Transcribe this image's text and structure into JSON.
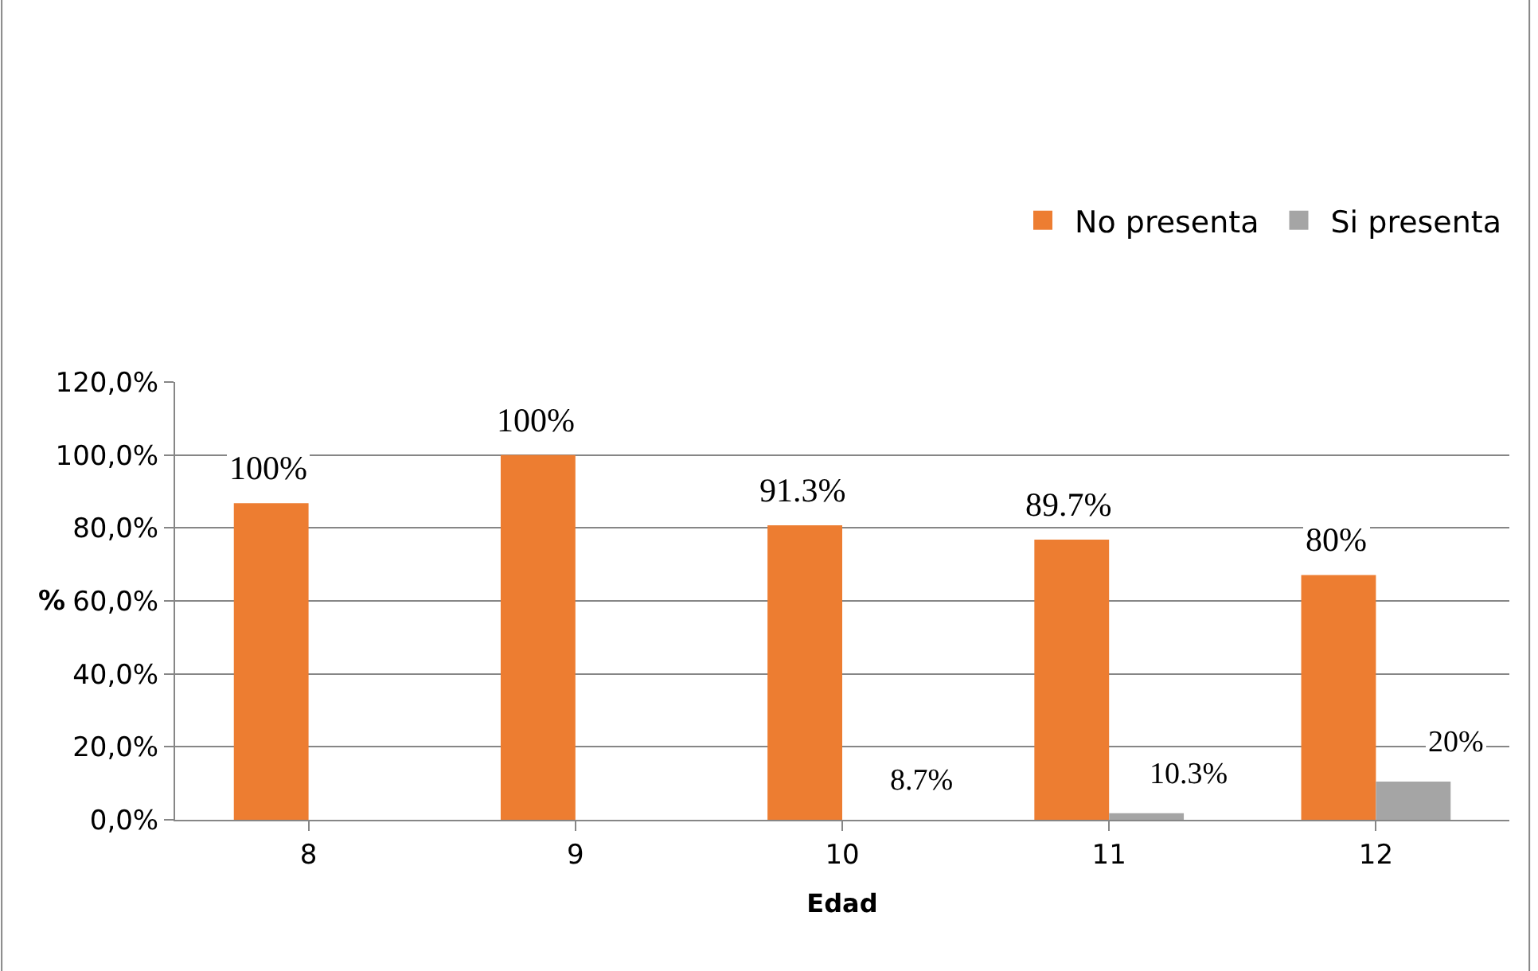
{
  "chart_data": {
    "type": "bar",
    "xlabel": "Edad",
    "ylabel": "%",
    "categories": [
      "8",
      "9",
      "10",
      "11",
      "12"
    ],
    "series": [
      {
        "name": "No presenta",
        "color": "#ed7d31",
        "values": [
          86.8,
          100,
          80.7,
          76.8,
          67.1
        ]
      },
      {
        "name": "Si presenta",
        "color": "#a5a5a5",
        "values": [
          0,
          0,
          0,
          1.8,
          10.5
        ]
      }
    ],
    "ylim": [
      0,
      120
    ],
    "yticks": [
      {
        "value": 0,
        "label": "0,0%"
      },
      {
        "value": 20,
        "label": "20,0%"
      },
      {
        "value": 40,
        "label": "40,0%"
      },
      {
        "value": 60,
        "label": "60,0%"
      },
      {
        "value": 80,
        "label": "80,0%"
      },
      {
        "value": 100,
        "label": "100,0%"
      },
      {
        "value": 120,
        "label": "120,0%"
      }
    ],
    "grid": "y",
    "legend": "top right",
    "annotations": [
      "100%",
      "100%",
      "91.3%",
      "89.7%",
      "80%",
      "8.7%",
      "10.3%",
      "20%"
    ]
  }
}
